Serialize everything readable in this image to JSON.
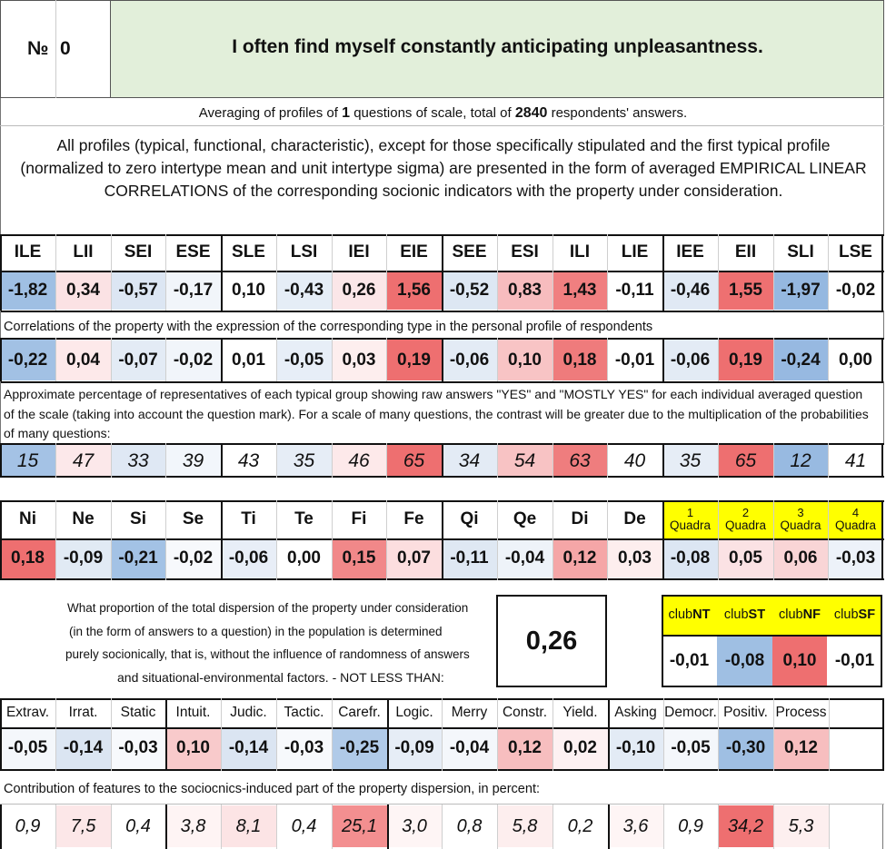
{
  "header": {
    "number_label": "№",
    "number_value": "0",
    "title": "I often find myself constantly anticipating unpleasantness."
  },
  "summary": {
    "prefix": "Averaging of profiles of ",
    "questions": "1",
    "middle": " questions of scale, total of ",
    "answers": "2840",
    "suffix": " respondents' answers."
  },
  "description": "All profiles (typical, functional, characteristic), except for those specifically stipulated and the first typical profile (normalized to zero intertype mean and unit intertype sigma) are presented in the form of averaged EMPIRICAL LINEAR CORRELATIONS of the corresponding socionic indicators with the property under consideration.",
  "types": {
    "headers": [
      "ILE",
      "LII",
      "SEI",
      "ESE",
      "SLE",
      "LSI",
      "IEI",
      "EIE",
      "SEE",
      "ESI",
      "ILI",
      "LIE",
      "IEE",
      "EII",
      "SLI",
      "LSE"
    ],
    "profile": [
      "-1,82",
      "0,34",
      "-0,57",
      "-0,17",
      "0,10",
      "-0,43",
      "0,26",
      "1,56",
      "-0,52",
      "0,83",
      "1,43",
      "-0,11",
      "-0,46",
      "1,55",
      "-1,97",
      "-0,02"
    ],
    "profile_colors": [
      "#9fbfe3",
      "#fbe2e4",
      "#dce6f3",
      "#f1f5fa",
      "#ffffff",
      "#e5edf6",
      "#fbe6e8",
      "#ee6f70",
      "#dde7f3",
      "#f7bcbe",
      "#f07f80",
      "#ffffff",
      "#e0e9f4",
      "#ee7071",
      "#95b8e0",
      "#ffffff"
    ],
    "corr_note": "Correlations of the property with the expression of the corresponding type in the personal profile of respondents",
    "corr": [
      "-0,22",
      "0,04",
      "-0,07",
      "-0,02",
      "0,01",
      "-0,05",
      "0,03",
      "0,19",
      "-0,06",
      "0,10",
      "0,18",
      "-0,01",
      "-0,06",
      "0,19",
      "-0,24",
      "0,00"
    ],
    "corr_colors": [
      "#a2c1e4",
      "#fde9ea",
      "#e3ebf5",
      "#f1f5fa",
      "#ffffff",
      "#e7eef7",
      "#fdeeee",
      "#ee6f70",
      "#e3ebf5",
      "#f8c4c5",
      "#ef7b7c",
      "#ffffff",
      "#e3ebf5",
      "#ee6f70",
      "#97b9e1",
      "#ffffff"
    ],
    "pct_note": "Approximate percentage of representatives of each typical group showing raw answers \"YES\" and \"MOSTLY YES\" for each individual averaged question of the scale (taking into account the question mark). For a scale of many questions, the contrast will be greater due to the multiplication of the probabilities of many questions:",
    "pct": [
      "15",
      "47",
      "33",
      "39",
      "43",
      "35",
      "46",
      "65",
      "34",
      "54",
      "63",
      "40",
      "35",
      "65",
      "12",
      "41"
    ],
    "pct_colors": [
      "#a4c2e5",
      "#fce8ea",
      "#dfe8f4",
      "#f2f6fb",
      "#ffffff",
      "#e6edf6",
      "#fde9ea",
      "#ee6f70",
      "#e3ebf5",
      "#f8c3c4",
      "#ef7d7e",
      "#ffffff",
      "#e6edf6",
      "#ee6f70",
      "#98bae1",
      "#ffffff"
    ]
  },
  "functions": {
    "headers": [
      "Ni",
      "Ne",
      "Si",
      "Se",
      "Ti",
      "Te",
      "Fi",
      "Fe",
      "Qi",
      "Qe",
      "Di",
      "De"
    ],
    "values": [
      "0,18",
      "-0,09",
      "-0,21",
      "-0,02",
      "-0,06",
      "0,00",
      "0,15",
      "0,07",
      "-0,11",
      "-0,04",
      "0,12",
      "0,03"
    ],
    "colors": [
      "#ee6f70",
      "#e1eaf4",
      "#a3c2e5",
      "#f7f9fc",
      "#e8eef7",
      "#ffffff",
      "#f18889",
      "#fcdedf",
      "#dfe8f3",
      "#eef3f9",
      "#f5a6a7",
      "#fdeeee"
    ],
    "quadras": [
      {
        "num": "1",
        "label": "Quadra",
        "value": "-0,08",
        "color": "#dce6f3"
      },
      {
        "num": "2",
        "label": "Quadra",
        "value": "0,05",
        "color": "#fbe2e4"
      },
      {
        "num": "3",
        "label": "Quadra",
        "value": "0,06",
        "color": "#f9d5d6"
      },
      {
        "num": "4",
        "label": "Quadra",
        "value": "-0,03",
        "color": "#edf2f9"
      }
    ],
    "quadra_header_color": "#ffff00"
  },
  "dispersion": {
    "note_lines": [
      "What proportion of the total dispersion of the property under consideration",
      "(in the form of answers to a question) in the population is determined",
      "purely socionically, that is, without the influence of randomness of answers",
      "and situational-environmental factors. - NOT LESS THAN:"
    ],
    "value": "0,26",
    "box_color": "#ffff00"
  },
  "clubs": [
    {
      "prefix": "club",
      "bold": "NT",
      "value": "-0,01",
      "color": "#ffffff"
    },
    {
      "prefix": "club",
      "bold": "ST",
      "value": "-0,08",
      "color": "#9fbfe3"
    },
    {
      "prefix": "club",
      "bold": "NF",
      "value": "0,10",
      "color": "#ee6f70"
    },
    {
      "prefix": "club",
      "bold": "SF",
      "value": "-0,01",
      "color": "#ffffff"
    }
  ],
  "features": {
    "headers": [
      "Extrav.",
      "Irrat.",
      "Static",
      "Intuit.",
      "Judic.",
      "Tactic.",
      "Carefr.",
      "Logic.",
      "Merry",
      "Constr.",
      "Yield.",
      "Asking",
      "Democr.",
      "Positiv.",
      "Process"
    ],
    "values": [
      "-0,05",
      "-0,14",
      "-0,03",
      "0,10",
      "-0,14",
      "-0,03",
      "-0,25",
      "-0,09",
      "-0,04",
      "0,12",
      "0,02",
      "-0,10",
      "-0,05",
      "-0,30",
      "0,12"
    ],
    "colors": [
      "#f4f7fb",
      "#dbe5f2",
      "#f7f9fc",
      "#f8cacb",
      "#dbe5f2",
      "#f7f9fc",
      "#b0cae8",
      "#e6edf6",
      "#f4f7fb",
      "#f7bebf",
      "#fdf1f2",
      "#e3ebf5",
      "#f4f7fb",
      "#9fbfe3",
      "#f7bebf"
    ],
    "contrib_note": "Contribution of features to the sociocnics-induced part of the property dispersion, in percent:",
    "contrib": [
      "0,9",
      "7,5",
      "0,4",
      "3,8",
      "8,1",
      "0,4",
      "25,1",
      "3,0",
      "0,8",
      "5,8",
      "0,2",
      "3,6",
      "0,9",
      "34,2",
      "5,3"
    ],
    "contrib_colors": [
      "#ffffff",
      "#fce7e8",
      "#ffffff",
      "#fef4f4",
      "#fce4e5",
      "#ffffff",
      "#f38f90",
      "#fef5f5",
      "#ffffff",
      "#fdeeee",
      "#ffffff",
      "#fef5f5",
      "#ffffff",
      "#ee6f70",
      "#fdefef"
    ]
  }
}
